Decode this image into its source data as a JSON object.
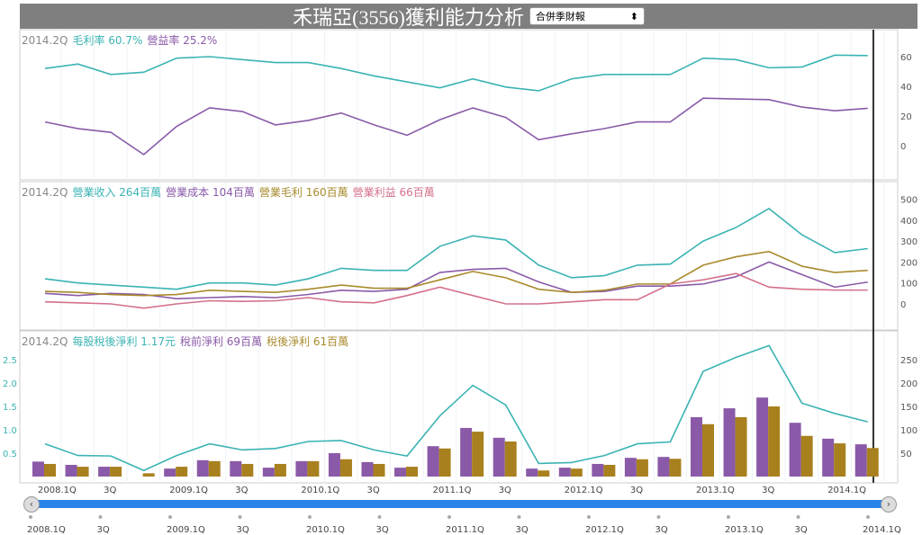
{
  "header": {
    "title": "禾瑞亞(3556)獲利能力分析",
    "report_select": "合併季財報",
    "select_icon": "updown-arrows-icon"
  },
  "legends": {
    "p1": {
      "period": "2014.2Q",
      "a": "毛利率 60.7%",
      "b": "營益率 25.2%"
    },
    "p2": {
      "period": "2014.2Q",
      "a": "營業收入 264百萬",
      "b": "營業成本 104百萬",
      "c": "營業毛利 160百萬",
      "d": "營業利益 66百萬"
    },
    "p3": {
      "period": "2014.2Q",
      "a": "每股稅後淨利 1.17元",
      "b": "稅前淨利 69百萬",
      "c": "稅後淨利 61百萬"
    }
  },
  "colors": {
    "teal": "#3bb3b3",
    "purple": "#8a5aa8",
    "gold": "#a98a2c",
    "pink": "#d4708a",
    "bar_purple": "#8a5aa8",
    "bar_gold": "#a8801e",
    "slider": "#2a84e8"
  },
  "chart_data": [
    {
      "type": "line",
      "quarters": [
        "2008.1Q",
        "2008.2Q",
        "2008.3Q",
        "2008.4Q",
        "2009.1Q",
        "2009.2Q",
        "2009.3Q",
        "2009.4Q",
        "2010.1Q",
        "2010.2Q",
        "2010.3Q",
        "2010.4Q",
        "2011.1Q",
        "2011.2Q",
        "2011.3Q",
        "2011.4Q",
        "2012.1Q",
        "2012.2Q",
        "2012.3Q",
        "2012.4Q",
        "2013.1Q",
        "2013.2Q",
        "2013.3Q",
        "2013.4Q",
        "2014.1Q",
        "2014.2Q"
      ],
      "yticks": [
        0,
        20,
        40,
        60
      ],
      "ylim": [
        -15,
        75
      ],
      "series": [
        {
          "name": "毛利率",
          "values": [
            52,
            55,
            48,
            49.5,
            59,
            60,
            58,
            56,
            56,
            52,
            47,
            43,
            39,
            45,
            39.5,
            37,
            45,
            48,
            48,
            48,
            59,
            58,
            52.5,
            53,
            61,
            60.7
          ]
        },
        {
          "name": "營益率",
          "values": [
            16,
            11.5,
            9,
            -6,
            13,
            25.5,
            23,
            14,
            17,
            22,
            14,
            7,
            17.5,
            25.5,
            19,
            4,
            8,
            11.5,
            16,
            16,
            32,
            31.5,
            31,
            26,
            23.5,
            25.2
          ]
        }
      ]
    },
    {
      "type": "line",
      "yticks": [
        0,
        100,
        200,
        300,
        400,
        500
      ],
      "ylim": [
        -40,
        560
      ],
      "series": [
        {
          "name": "營業收入",
          "values": [
            120,
            100,
            90,
            80,
            70,
            100,
            100,
            90,
            120,
            170,
            160,
            160,
            275,
            325,
            305,
            185,
            125,
            135,
            185,
            190,
            300,
            365,
            455,
            330,
            245,
            264
          ]
        },
        {
          "name": "營業成本",
          "values": [
            50,
            40,
            50,
            45,
            25,
            30,
            35,
            30,
            45,
            65,
            60,
            70,
            150,
            165,
            170,
            105,
            55,
            60,
            85,
            85,
            95,
            130,
            200,
            140,
            80,
            104
          ]
        },
        {
          "name": "營業毛利",
          "values": [
            60,
            55,
            45,
            40,
            45,
            65,
            60,
            55,
            70,
            90,
            75,
            75,
            115,
            155,
            125,
            70,
            55,
            65,
            95,
            95,
            185,
            225,
            250,
            180,
            150,
            160
          ]
        },
        {
          "name": "營業利益",
          "values": [
            10,
            5,
            0,
            -20,
            0,
            15,
            12,
            15,
            30,
            10,
            5,
            40,
            80,
            40,
            0,
            0,
            10,
            20,
            20,
            95,
            115,
            145,
            80,
            70,
            66,
            66
          ]
        }
      ]
    },
    {
      "type": "bar+line",
      "left_yticks": [
        0.5,
        1.0,
        1.5,
        2.0,
        2.5
      ],
      "right_yticks": [
        50,
        100,
        150,
        200,
        250
      ],
      "xticks": [
        "2008.1Q",
        "3Q",
        "2009.1Q",
        "3Q",
        "2010.1Q",
        "3Q",
        "2011.1Q",
        "3Q",
        "2012.1Q",
        "3Q",
        "2013.1Q",
        "3Q",
        "2014.1Q"
      ],
      "series": [
        {
          "name": "每股稅後淨利",
          "values": [
            0.7,
            0.45,
            0.44,
            0.13,
            0.45,
            0.7,
            0.57,
            0.6,
            0.75,
            0.77,
            0.57,
            0.44,
            1.3,
            1.95,
            1.53,
            0.28,
            0.3,
            0.45,
            0.7,
            0.74,
            2.25,
            2.55,
            2.8,
            1.57,
            1.35,
            1.17
          ]
        },
        {
          "name": "稅前淨利",
          "values": [
            32,
            25,
            21,
            0,
            17,
            35,
            33,
            19,
            33,
            50,
            31,
            19,
            65,
            104,
            83,
            17,
            19,
            27,
            40,
            42,
            127,
            146,
            169,
            115,
            81,
            69
          ]
        },
        {
          "name": "稅後淨利",
          "values": [
            27,
            21,
            21,
            7,
            21,
            33,
            27,
            27,
            33,
            37,
            27,
            21,
            60,
            96,
            75,
            13,
            17,
            25,
            37,
            38,
            112,
            127,
            150,
            87,
            71,
            61
          ]
        }
      ]
    }
  ],
  "navigator": {
    "labels": [
      "2008.1Q",
      "3Q",
      "2009.1Q",
      "3Q",
      "2010.1Q",
      "3Q",
      "2011.1Q",
      "3Q",
      "2012.1Q",
      "3Q",
      "2013.1Q",
      "3Q",
      "2014.1Q"
    ],
    "left_icon": "chevron-left-icon",
    "right_icon": "chevron-right-icon"
  }
}
